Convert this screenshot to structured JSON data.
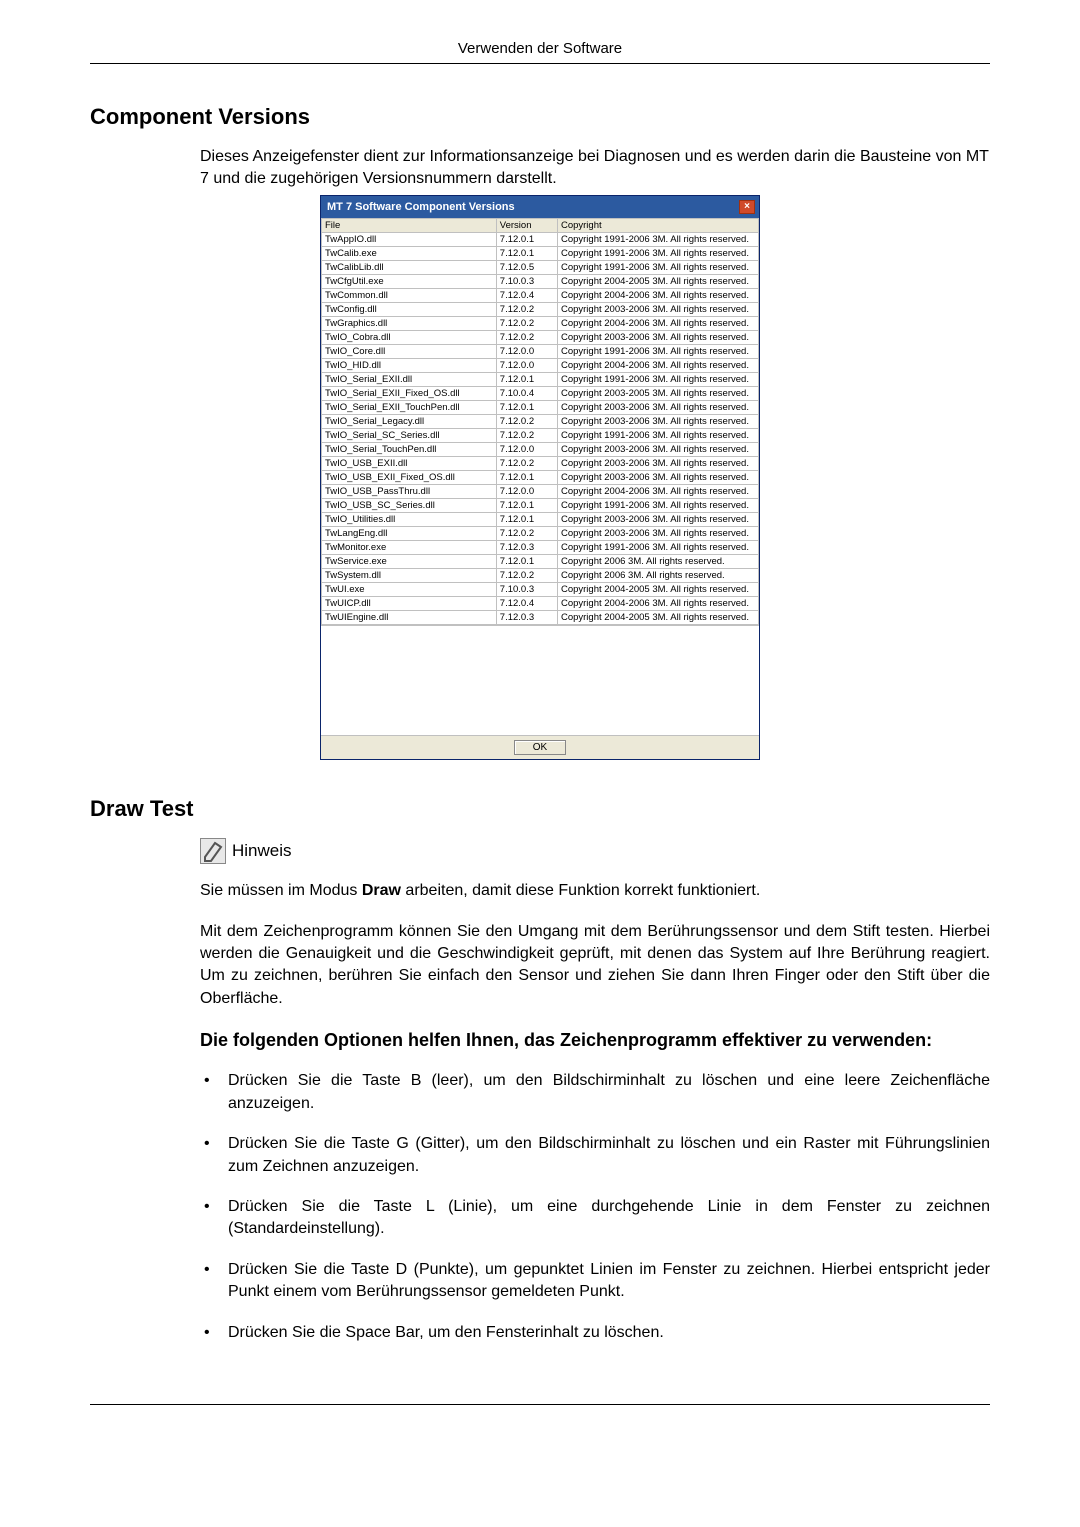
{
  "page_header": "Verwenden der Software",
  "section1_title": "Component Versions",
  "section1_intro": "Dieses Anzeigefenster dient zur Informationsanzeige bei Diagnosen und es werden darin die Bausteine von MT 7 und die zugehörigen Versionsnummern darstellt.",
  "dialog": {
    "title": "MT 7 Software Component Versions",
    "columns": [
      "File",
      "Version",
      "Copyright"
    ],
    "ok_label": "OK",
    "rows": [
      [
        "TwAppIO.dll",
        "7.12.0.1",
        "Copyright 1991-2006 3M. All rights reserved."
      ],
      [
        "TwCalib.exe",
        "7.12.0.1",
        "Copyright 1991-2006 3M. All rights reserved."
      ],
      [
        "TwCalibLib.dll",
        "7.12.0.5",
        "Copyright 1991-2006 3M. All rights reserved."
      ],
      [
        "TwCfgUtil.exe",
        "7.10.0.3",
        "Copyright 2004-2005 3M. All rights reserved."
      ],
      [
        "TwCommon.dll",
        "7.12.0.4",
        "Copyright 2004-2006 3M. All rights reserved."
      ],
      [
        "TwConfig.dll",
        "7.12.0.2",
        "Copyright 2003-2006 3M. All rights reserved."
      ],
      [
        "TwGraphics.dll",
        "7.12.0.2",
        "Copyright 2004-2006 3M. All rights reserved."
      ],
      [
        "TwIO_Cobra.dll",
        "7.12.0.2",
        "Copyright 2003-2006 3M. All rights reserved."
      ],
      [
        "TwIO_Core.dll",
        "7.12.0.0",
        "Copyright 1991-2006 3M. All rights reserved."
      ],
      [
        "TwIO_HID.dll",
        "7.12.0.0",
        "Copyright 2004-2006 3M. All rights reserved."
      ],
      [
        "TwIO_Serial_EXII.dll",
        "7.12.0.1",
        "Copyright 1991-2006 3M. All rights reserved."
      ],
      [
        "TwIO_Serial_EXII_Fixed_OS.dll",
        "7.10.0.4",
        "Copyright 2003-2005 3M. All rights reserved."
      ],
      [
        "TwIO_Serial_EXII_TouchPen.dll",
        "7.12.0.1",
        "Copyright 2003-2006 3M. All rights reserved."
      ],
      [
        "TwIO_Serial_Legacy.dll",
        "7.12.0.2",
        "Copyright 2003-2006 3M. All rights reserved."
      ],
      [
        "TwIO_Serial_SC_Series.dll",
        "7.12.0.2",
        "Copyright 1991-2006 3M. All rights reserved."
      ],
      [
        "TwIO_Serial_TouchPen.dll",
        "7.12.0.0",
        "Copyright 2003-2006 3M. All rights reserved."
      ],
      [
        "TwIO_USB_EXII.dll",
        "7.12.0.2",
        "Copyright 2003-2006 3M. All rights reserved."
      ],
      [
        "TwIO_USB_EXII_Fixed_OS.dll",
        "7.12.0.1",
        "Copyright 2003-2006 3M. All rights reserved."
      ],
      [
        "TwIO_USB_PassThru.dll",
        "7.12.0.0",
        "Copyright 2004-2006 3M. All rights reserved."
      ],
      [
        "TwIO_USB_SC_Series.dll",
        "7.12.0.1",
        "Copyright 1991-2006 3M. All rights reserved."
      ],
      [
        "TwIO_Utilities.dll",
        "7.12.0.1",
        "Copyright 2003-2006 3M. All rights reserved."
      ],
      [
        "TwLangEng.dll",
        "7.12.0.2",
        "Copyright 2003-2006 3M. All rights reserved."
      ],
      [
        "TwMonitor.exe",
        "7.12.0.3",
        "Copyright 1991-2006 3M. All rights reserved."
      ],
      [
        "TwService.exe",
        "7.12.0.1",
        "Copyright 2006 3M. All rights reserved."
      ],
      [
        "TwSystem.dll",
        "7.12.0.2",
        "Copyright 2006 3M. All rights reserved."
      ],
      [
        "TwUI.exe",
        "7.10.0.3",
        "Copyright 2004-2005 3M. All rights reserved."
      ],
      [
        "TwUICP.dll",
        "7.12.0.4",
        "Copyright 2004-2006 3M. All rights reserved."
      ],
      [
        "TwUIEngine.dll",
        "7.12.0.3",
        "Copyright 2004-2005 3M. All rights reserved."
      ]
    ]
  },
  "section2_title": "Draw Test",
  "hinweis_label": "Hinweis",
  "body1": "Sie müssen im Modus Draw arbeiten, damit diese Funktion korrekt funktioniert.",
  "body1_bold": "Draw",
  "body2": "Mit dem Zeichenprogramm können Sie den Umgang mit dem Berührungssensor und dem Stift testen. Hierbei werden die Genauigkeit und die Geschwindigkeit geprüft, mit denen das System auf Ihre Berührung reagiert. Um zu zeichnen, berühren Sie einfach den Sensor und ziehen Sie dann Ihren Finger oder den Stift über die Oberfläche.",
  "subsection_title": "Die folgenden Optionen helfen Ihnen, das Zeichenprogramm effektiver zu verwenden:",
  "bullets": [
    "Drücken Sie die Taste B (leer), um den Bildschirminhalt zu löschen und eine leere Zei­chenfläche anzuzeigen.",
    "Drücken Sie die Taste G (Gitter), um den Bildschirminhalt zu löschen und ein Raster mit Führungslinien zum Zeichnen anzuzeigen.",
    "Drücken Sie die Taste L (Linie), um eine durchgehende Linie in dem Fenster zu zeichnen (Standardeinstellung).",
    "Drücken Sie die Taste D (Punkte), um gepunktet Linien im Fenster zu zeichnen. Hierbei entspricht jeder Punkt einem vom Berührungssensor gemeldeten Punkt.",
    "Drücken Sie die Space Bar, um den Fensterinhalt zu löschen."
  ]
}
